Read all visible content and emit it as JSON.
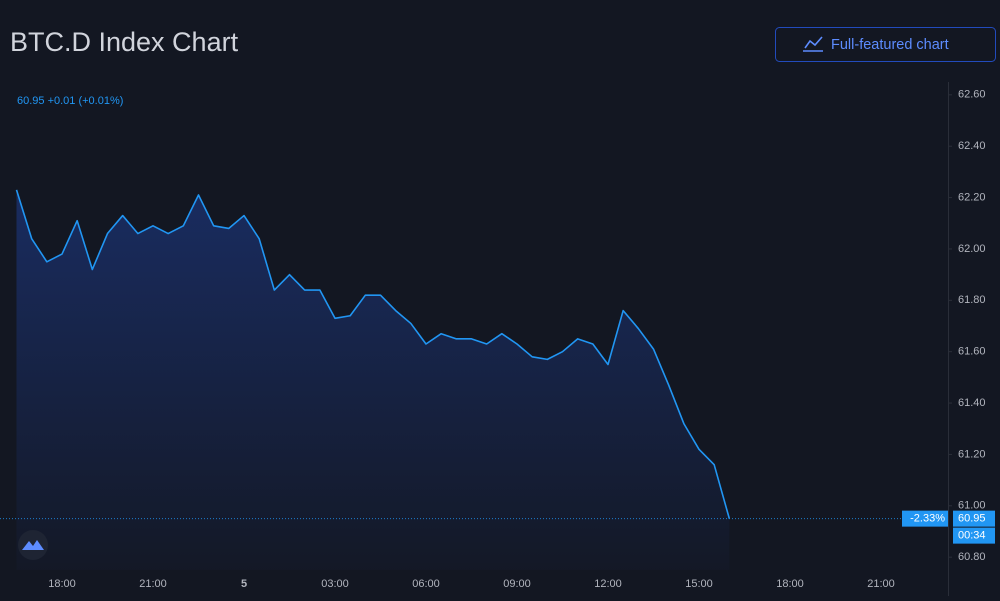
{
  "header": {
    "title": "BTC.D Index Chart",
    "button": "Full-featured chart"
  },
  "chart_data": {
    "type": "line",
    "legend": "60.95 +0.01 (+0.01%)",
    "color": "#2196f3",
    "categories": [
      null,
      null,
      null,
      "18:00",
      null,
      null,
      null,
      null,
      null,
      "21:00",
      null,
      null,
      null,
      null,
      null,
      "5",
      null,
      null,
      null,
      null,
      null,
      "03:00",
      null,
      null,
      null,
      null,
      null,
      "06:00",
      null,
      null,
      null,
      null,
      null,
      "09:00",
      null,
      null,
      null,
      null,
      null,
      "12:00",
      null,
      null,
      null,
      null,
      null,
      "15:00",
      null,
      null,
      null,
      null,
      null,
      "18:00",
      null,
      null,
      null,
      null,
      null,
      "21:00",
      null,
      null,
      null
    ],
    "values": [
      62.23,
      62.04,
      61.95,
      61.98,
      62.11,
      61.92,
      62.06,
      62.13,
      62.06,
      62.09,
      62.06,
      62.09,
      62.21,
      62.09,
      62.08,
      62.13,
      62.04,
      61.84,
      61.9,
      61.84,
      61.84,
      61.73,
      61.74,
      61.82,
      61.82,
      61.76,
      61.71,
      61.63,
      61.67,
      61.65,
      61.65,
      61.63,
      61.67,
      61.63,
      61.58,
      61.57,
      61.6,
      61.65,
      61.63,
      61.55,
      61.76,
      61.69,
      61.61,
      61.47,
      61.32,
      61.22,
      61.16,
      60.95,
      null,
      null,
      null,
      null,
      null,
      null,
      null,
      null,
      null,
      null,
      null,
      null,
      null
    ],
    "ylim": [
      60.75,
      62.65
    ],
    "yticks": [
      {
        "value": 60.8,
        "label": "60.80"
      },
      {
        "value": 61,
        "label": "61.00"
      },
      {
        "value": 61.2,
        "label": "61.20"
      },
      {
        "value": 61.4,
        "label": "61.40"
      },
      {
        "value": 61.6,
        "label": "61.60"
      },
      {
        "value": 61.8,
        "label": "61.80"
      },
      {
        "value": 62,
        "label": "62.00"
      },
      {
        "value": 62.2,
        "label": "62.20"
      },
      {
        "value": 62.4,
        "label": "62.40"
      },
      {
        "value": 62.6,
        "label": "62.60"
      }
    ],
    "price_line": 60.95,
    "change_label": "-2.33%",
    "countdown": "00:34"
  }
}
